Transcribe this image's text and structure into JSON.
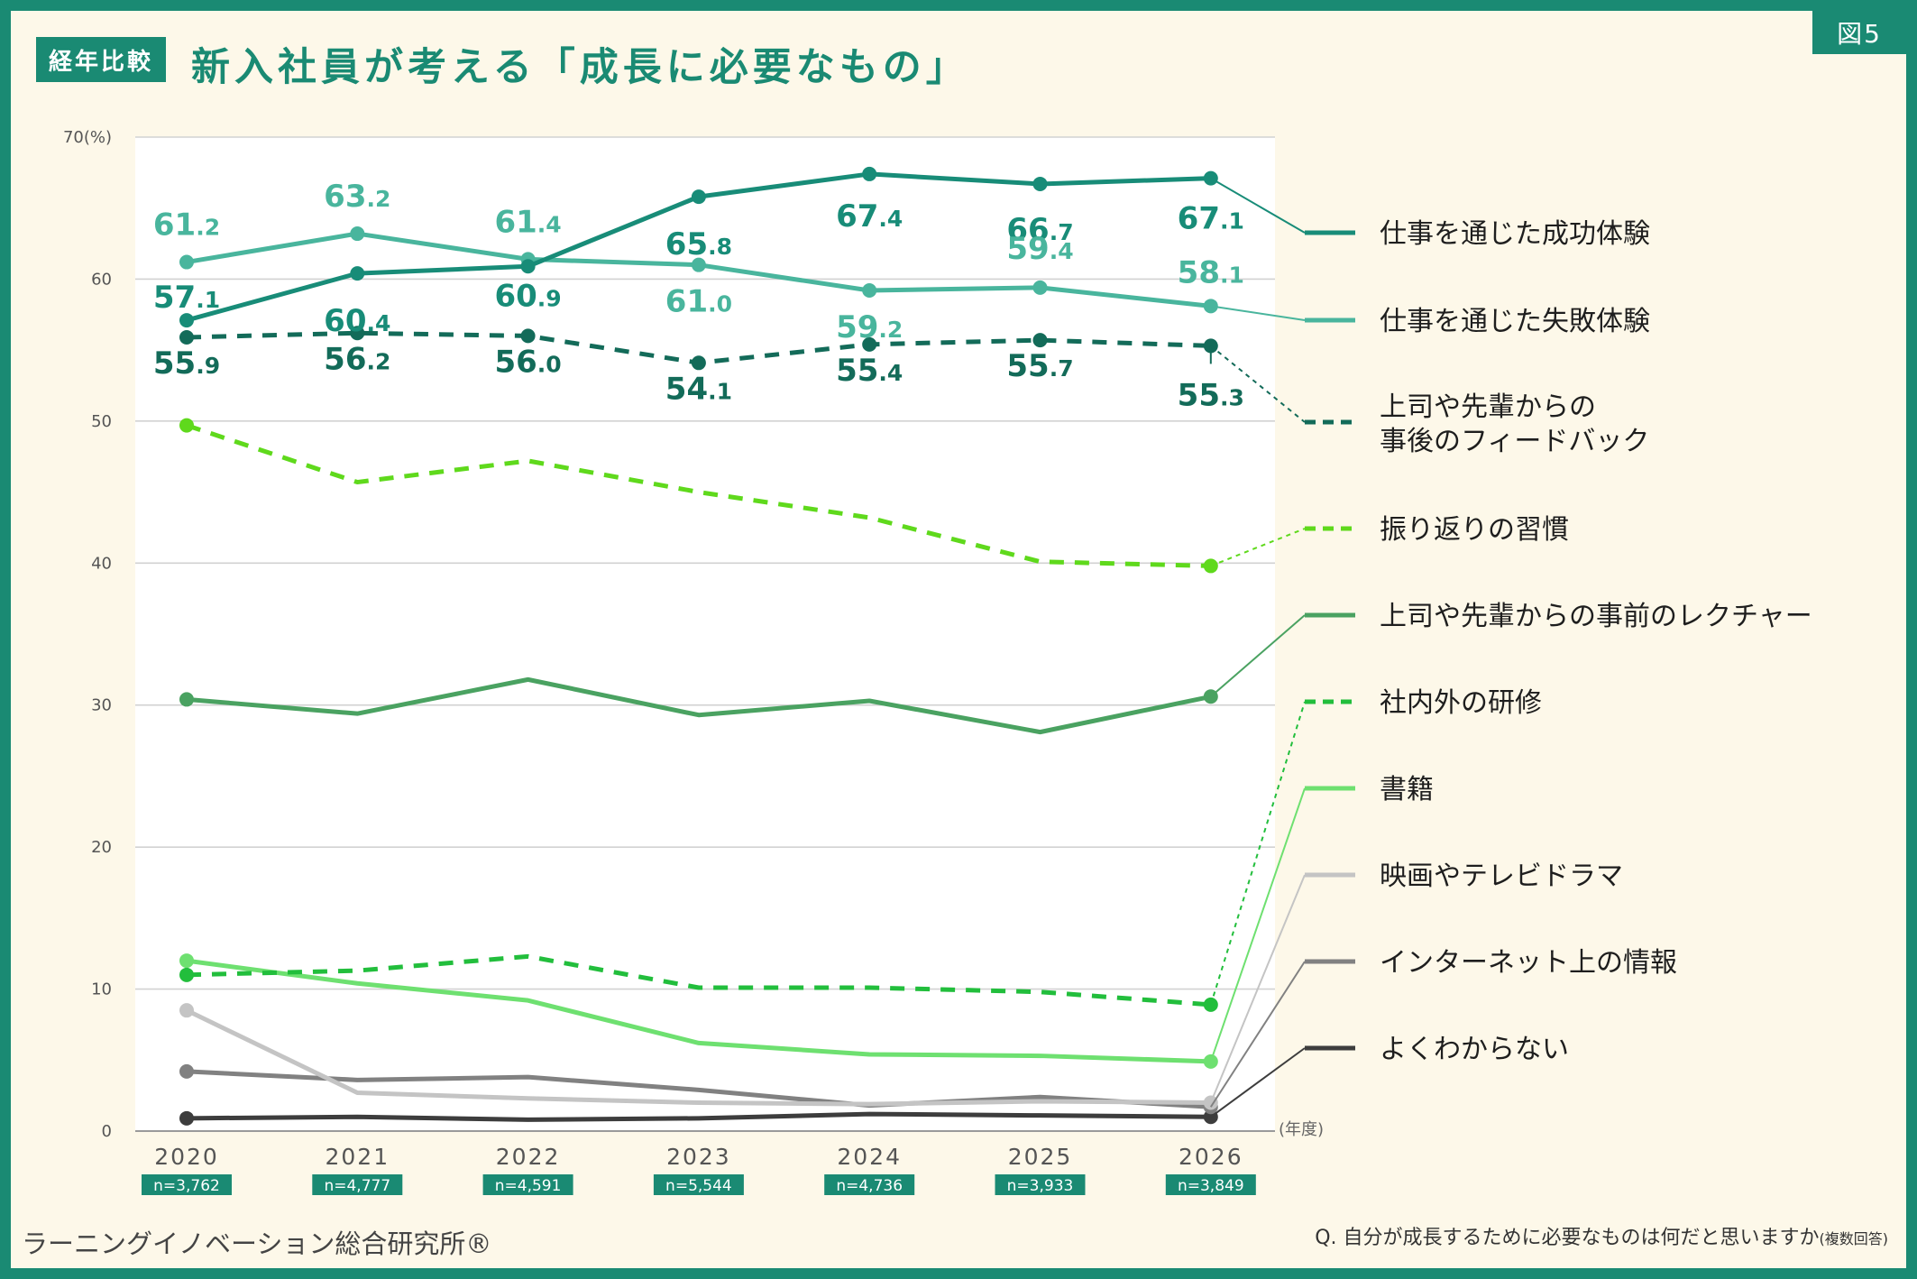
{
  "header": {
    "badge": "経年比較",
    "title": "新入社員が考える「成長に必要なもの」",
    "figure_tag": "図5"
  },
  "footer": {
    "source": "ラーニングイノベーション総合研究所®",
    "question": "Q. 自分が成長するために必要なものは何だと思いますか",
    "question_note": "(複数回答)"
  },
  "colors": {
    "frame": "#1a8a73",
    "background": "#fdf8e9",
    "plot_area": "#ffffff"
  },
  "chart_data": {
    "type": "line",
    "ylabel": "(%)",
    "xlabel": "(年度)",
    "ylim": [
      0,
      70
    ],
    "yticks": [
      0,
      10,
      20,
      30,
      40,
      50,
      60,
      70
    ],
    "ytick_labels": [
      "0",
      "10",
      "20",
      "30",
      "40",
      "50",
      "60",
      "70(%)"
    ],
    "grid": true,
    "legend_position": "right",
    "x": [
      "2020",
      "2021",
      "2022",
      "2023",
      "2024",
      "2025",
      "2026"
    ],
    "sample_sizes": [
      "n=3,762",
      "n=4,777",
      "n=4,591",
      "n=5,544",
      "n=4,736",
      "n=3,933",
      "n=3,849"
    ],
    "series": [
      {
        "name": "仕事を通じた成功体験",
        "color": "#188c78",
        "dashed": false,
        "labeled": true,
        "values": [
          57.1,
          60.4,
          60.9,
          65.8,
          67.4,
          66.7,
          67.1
        ]
      },
      {
        "name": "仕事を通じた失敗体験",
        "color": "#49b59d",
        "dashed": false,
        "labeled": true,
        "values": [
          61.2,
          63.2,
          61.4,
          61.0,
          59.2,
          59.4,
          58.1
        ]
      },
      {
        "name": "上司や先輩からの\n事後のフィードバック",
        "color": "#136b59",
        "dashed": true,
        "labeled": true,
        "values": [
          55.9,
          56.2,
          56.0,
          54.1,
          55.4,
          55.7,
          55.3
        ]
      },
      {
        "name": "振り返りの習慣",
        "color": "#5fd91c",
        "dashed": true,
        "labeled": false,
        "values": [
          49.7,
          45.7,
          47.2,
          45.0,
          43.2,
          40.1,
          39.8
        ]
      },
      {
        "name": "上司や先輩からの事前のレクチャー",
        "color": "#4aa261",
        "dashed": false,
        "labeled": false,
        "values": [
          30.4,
          29.4,
          31.8,
          29.3,
          30.3,
          28.1,
          30.6
        ]
      },
      {
        "name": "社内外の研修",
        "color": "#22be3c",
        "dashed": true,
        "labeled": false,
        "values": [
          11.0,
          11.3,
          12.3,
          10.1,
          10.1,
          9.8,
          8.9
        ]
      },
      {
        "name": "書籍",
        "color": "#6ee070",
        "dashed": false,
        "labeled": false,
        "values": [
          12.0,
          10.4,
          9.2,
          6.2,
          5.4,
          5.3,
          4.9
        ]
      },
      {
        "name": "映画やテレビドラマ",
        "color": "#c4c4c4",
        "dashed": false,
        "labeled": false,
        "values": [
          8.5,
          2.7,
          2.3,
          2.0,
          1.9,
          2.1,
          2.0
        ]
      },
      {
        "name": "インターネット上の情報",
        "color": "#818181",
        "dashed": false,
        "labeled": false,
        "values": [
          4.2,
          3.6,
          3.8,
          2.9,
          1.8,
          2.4,
          1.7
        ]
      },
      {
        "name": "よくわからない",
        "color": "#3d3d3d",
        "dashed": false,
        "labeled": false,
        "values": [
          0.9,
          1.0,
          0.8,
          0.9,
          1.2,
          1.1,
          1.0
        ]
      }
    ]
  }
}
